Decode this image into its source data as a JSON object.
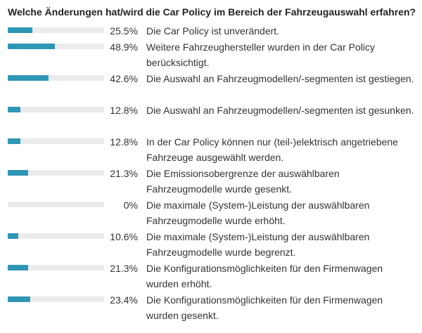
{
  "question": "Welche Änderungen hat/wird die Car Policy im Bereich der Fahrzeugauswahl erfahren?",
  "colors": {
    "bar_fill": "#2e97b5",
    "bar_track": "#ebebeb"
  },
  "chart_data": {
    "type": "bar",
    "orientation": "horizontal",
    "title": "Welche Änderungen hat/wird die Car Policy im Bereich der Fahrzeugauswahl erfahren?",
    "xlim": [
      0,
      100
    ],
    "unit": "%",
    "categories": [
      "Die Car Policy ist unverändert.",
      "Weitere Fahrzeughersteller wurden in der Car Policy berücksichtigt.",
      "Die Auswahl an Fahrzeugmodellen/-segmenten ist gestiegen.",
      "Die Auswahl an Fahrzeugmodellen/-segmenten ist gesunken.",
      "In der Car Policy können nur (teil-)elektrisch angetriebene Fahrzeuge ausgewählt werden.",
      "Die Emissionsobergrenze der auswählbaren Fahrzeugmodelle wurde gesenkt.",
      "Die maximale (System-)Leistung der auswählbaren Fahrzeugmodelle wurde erhöht.",
      "Die maximale (System-)Leistung der auswählbaren Fahrzeugmodelle wurde begrenzt.",
      "Die Konfigurationsmöglichkeiten für den Firmenwagen wurden erhöht.",
      "Die Konfigurationsmöglichkeiten für den Firmenwagen wurden gesenkt."
    ],
    "values": [
      25.5,
      48.9,
      42.6,
      12.8,
      12.8,
      21.3,
      0,
      10.6,
      21.3,
      23.4
    ],
    "value_labels": [
      "25.5%",
      "48.9%",
      "42.6%",
      "12.8%",
      "12.8%",
      "21.3%",
      "0%",
      "10.6%",
      "21.3%",
      "23.4%"
    ]
  }
}
